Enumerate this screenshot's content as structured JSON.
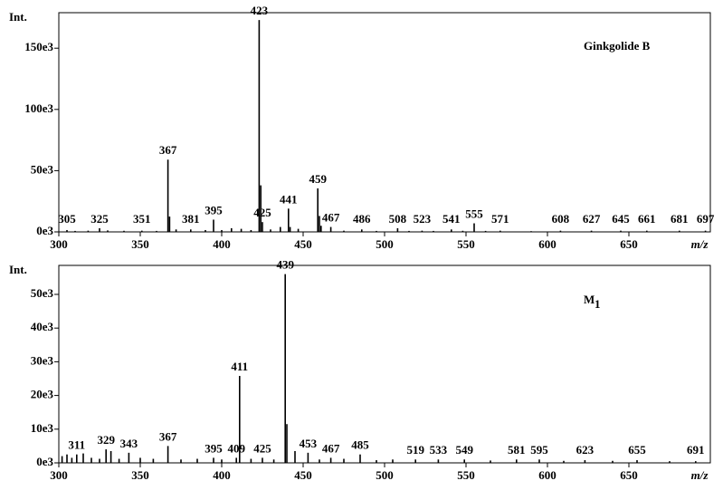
{
  "chart_data": [
    {
      "type": "bar",
      "y_label": "Int.",
      "x_label": "m/z",
      "annotation": "Ginkgolide B",
      "x": [
        305,
        310,
        318,
        325,
        330,
        340,
        351,
        360,
        367,
        368,
        372,
        381,
        390,
        395,
        400,
        406,
        412,
        418,
        423,
        424,
        425,
        430,
        436,
        441,
        442,
        447,
        459,
        460,
        461,
        467,
        475,
        486,
        495,
        508,
        515,
        523,
        530,
        541,
        548,
        555,
        562,
        571,
        590,
        608,
        627,
        645,
        661,
        681,
        697
      ],
      "values": [
        1500,
        800,
        1000,
        3000,
        1200,
        900,
        1000,
        800,
        59000,
        12500,
        2000,
        2000,
        1500,
        10000,
        1500,
        3000,
        2500,
        1500,
        173000,
        38000,
        8000,
        2000,
        4000,
        19000,
        4000,
        2500,
        35500,
        13000,
        5000,
        4000,
        1000,
        2000,
        800,
        3000,
        800,
        1000,
        800,
        2000,
        900,
        7000,
        800,
        1000,
        600,
        1000,
        1000,
        1000,
        1000,
        1000,
        1000
      ],
      "peak_labels": [
        "305",
        null,
        null,
        "325",
        null,
        null,
        "351",
        null,
        "367",
        null,
        null,
        "381",
        null,
        "395",
        null,
        null,
        null,
        null,
        "423",
        null,
        "425",
        null,
        null,
        "441",
        null,
        null,
        "459",
        null,
        null,
        "467",
        null,
        "486",
        null,
        "508",
        null,
        "523",
        null,
        "541",
        null,
        "555",
        null,
        "571",
        null,
        "608",
        "627",
        "645",
        "661",
        "681",
        "697"
      ],
      "color": "#000000",
      "xlim": [
        300,
        700
      ],
      "xticks": [
        300,
        350,
        400,
        450,
        500,
        550,
        600,
        650
      ],
      "ylim": [
        0,
        179000
      ],
      "yticks": [
        {
          "value": 0,
          "label": "0e3"
        },
        {
          "value": 50000,
          "label": "50e3"
        },
        {
          "value": 100000,
          "label": "100e3"
        },
        {
          "value": 150000,
          "label": "150e3"
        }
      ]
    },
    {
      "type": "bar",
      "y_label": "Int.",
      "x_label": "m/z",
      "annotation": "M",
      "annotation_subscript": "1",
      "x": [
        302,
        305,
        308,
        311,
        315,
        320,
        325,
        329,
        332,
        337,
        343,
        350,
        358,
        367,
        375,
        385,
        395,
        400,
        409,
        411,
        418,
        425,
        432,
        439,
        440,
        445,
        453,
        460,
        467,
        475,
        485,
        495,
        505,
        519,
        533,
        549,
        565,
        581,
        595,
        610,
        623,
        640,
        655,
        675,
        691
      ],
      "values": [
        2000,
        2500,
        1500,
        2500,
        2800,
        1500,
        1200,
        4000,
        3500,
        1200,
        3000,
        1500,
        1200,
        5000,
        1000,
        1200,
        1500,
        1000,
        1500,
        25800,
        1200,
        1500,
        1000,
        56000,
        11500,
        3500,
        3000,
        1000,
        1500,
        1200,
        2500,
        800,
        1000,
        1000,
        1000,
        1000,
        700,
        1000,
        1000,
        600,
        800,
        600,
        800,
        500,
        500
      ],
      "peak_labels": [
        null,
        null,
        null,
        "311",
        null,
        null,
        null,
        "329",
        null,
        null,
        "343",
        null,
        null,
        "367",
        null,
        null,
        "395",
        null,
        "409",
        "411",
        null,
        "425",
        null,
        "439",
        null,
        null,
        "453",
        null,
        "467",
        null,
        "485",
        null,
        null,
        "519",
        "533",
        "549",
        null,
        "581",
        "595",
        null,
        "623",
        null,
        "655",
        null,
        "691"
      ],
      "color": "#000000",
      "xlim": [
        300,
        700
      ],
      "xticks": [
        300,
        350,
        400,
        450,
        500,
        550,
        600,
        650
      ],
      "ylim": [
        0,
        58600
      ],
      "yticks": [
        {
          "value": 0,
          "label": "0e3"
        },
        {
          "value": 10000,
          "label": "10e3"
        },
        {
          "value": 20000,
          "label": "20e3"
        },
        {
          "value": 30000,
          "label": "30e3"
        },
        {
          "value": 40000,
          "label": "40e3"
        },
        {
          "value": 50000,
          "label": "50e3"
        }
      ]
    }
  ]
}
